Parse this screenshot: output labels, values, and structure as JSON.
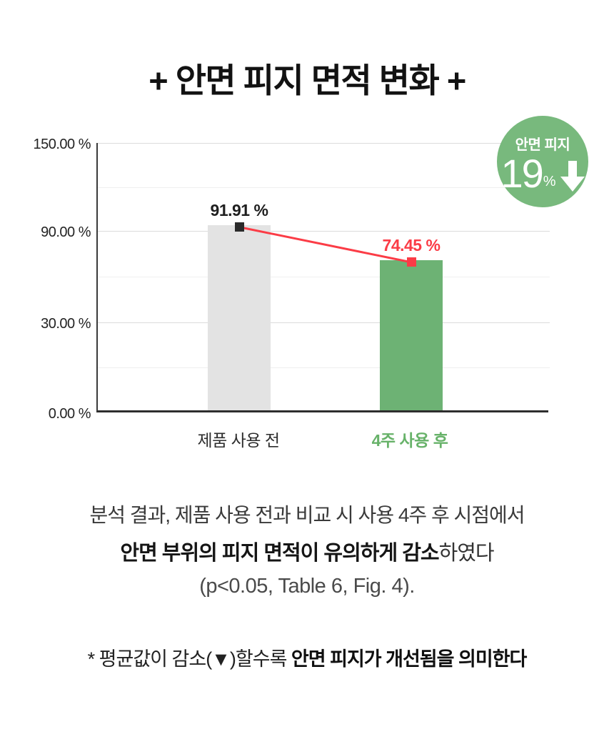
{
  "page": {
    "title": "+ 안면 피지 면적 변화 +"
  },
  "badge": {
    "label": "안면 피지",
    "value": "19",
    "unit": "%",
    "direction": "down",
    "bg_color": "#78b97d",
    "text_color": "#ffffff"
  },
  "chart_data": {
    "type": "bar",
    "title": "안면 피지 면적 변화",
    "categories": [
      "제품 사용 전",
      "4주 사용 후"
    ],
    "values": [
      91.91,
      74.45
    ],
    "value_labels": [
      "91.91 %",
      "74.45 %"
    ],
    "value_label_colors": [
      "#1f1f1f",
      "#fb3c46"
    ],
    "bar_colors": [
      "#e3e3e3",
      "#6db274"
    ],
    "category_colors": [
      "#2d2d2d",
      "#67b269"
    ],
    "xlabel": "",
    "ylabel": "",
    "ylim": [
      0,
      150
    ],
    "ytick_labels": [
      "150.00 %",
      "90.00 %",
      "30.00 %",
      "0.00 %"
    ],
    "ytick_values": [
      150,
      90,
      30,
      0
    ],
    "grid": true,
    "legend": "none",
    "connector": {
      "type": "line",
      "color": "#fb3c46",
      "marker_colors": [
        "#2b2b2b",
        "#fb3c46"
      ]
    }
  },
  "analysis": {
    "line1": "분석 결과, 제품 사용 전과 비교 시 사용 4주 후 시점에서",
    "line2_bold": "안면 부위의 피지 면적이 유의하게 감소",
    "line2_rest": "하였다",
    "line3": "(p<0.05, Table 6, Fig. 4)."
  },
  "footnote": {
    "prefix": "* 평균값이 감소(▼)할수록 ",
    "bold": "안면 피지가 개선됨을 의미한다"
  }
}
